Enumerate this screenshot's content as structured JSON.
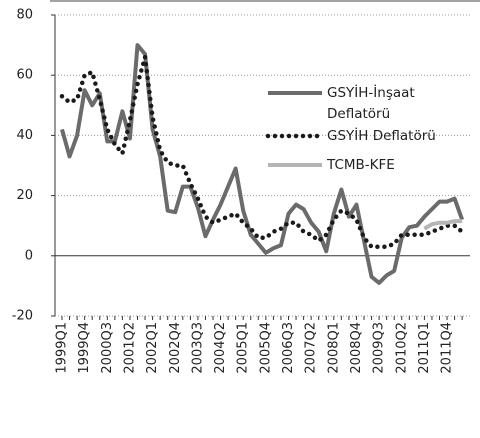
{
  "chart_data": {
    "type": "line",
    "categories": [
      "1999Q1",
      null,
      null,
      "1999Q4",
      null,
      null,
      "2000Q3",
      null,
      null,
      "2001Q2",
      null,
      null,
      "2002Q1",
      null,
      null,
      "2002Q4",
      null,
      null,
      "2003Q3",
      null,
      null,
      "2004Q2",
      null,
      null,
      "2005Q1",
      null,
      null,
      "2005Q4",
      null,
      null,
      "2006Q3",
      null,
      null,
      "2007Q2",
      null,
      null,
      "2008Q1",
      null,
      null,
      "2008Q4",
      null,
      null,
      "2009Q3",
      null,
      null,
      "2010Q2",
      null,
      null,
      "2011Q1",
      null,
      null,
      "2011Q4",
      null,
      null
    ],
    "series": [
      {
        "name": "GSYİH-İnşaat Deflatörü",
        "color": "#6b6b6b",
        "style": "solid",
        "values": [
          42,
          33,
          40,
          55,
          50,
          54,
          38,
          38,
          48,
          39,
          70,
          67,
          42,
          33,
          15,
          14.5,
          23,
          23,
          16,
          6.5,
          12,
          17,
          23,
          29,
          15,
          7,
          4,
          1,
          2.5,
          3.5,
          14,
          17,
          15.5,
          11,
          8,
          1.5,
          14,
          22,
          13,
          17,
          5,
          -7,
          -9,
          -6.5,
          -5,
          6,
          9.5,
          10,
          13,
          15.5,
          18,
          18,
          19,
          12
        ]
      },
      {
        "name": "GSYİH Deflatörü",
        "color": "#1a1a1a",
        "style": "dotted",
        "values": [
          53,
          51,
          52,
          60,
          61,
          52,
          42,
          37,
          34,
          45,
          57,
          66,
          46,
          35,
          31,
          30,
          30,
          24,
          19,
          13,
          11,
          12,
          13,
          14,
          11,
          9,
          6,
          6,
          8,
          9,
          11,
          11,
          8,
          7,
          5,
          7,
          12,
          15,
          14,
          12,
          6,
          3,
          3,
          3,
          4,
          7,
          7,
          7,
          7,
          8,
          9,
          10,
          10,
          8
        ]
      },
      {
        "name": "TCMB-KFE",
        "color": "#b5b5b5",
        "style": "solid",
        "values": [
          null,
          null,
          null,
          null,
          null,
          null,
          null,
          null,
          null,
          null,
          null,
          null,
          null,
          null,
          null,
          null,
          null,
          null,
          null,
          null,
          null,
          null,
          null,
          null,
          null,
          null,
          null,
          null,
          null,
          null,
          null,
          null,
          null,
          null,
          null,
          null,
          null,
          null,
          null,
          null,
          null,
          null,
          null,
          null,
          null,
          null,
          null,
          null,
          9,
          10.5,
          11,
          11,
          11.5,
          11.5
        ]
      }
    ],
    "ylim": [
      -20,
      80
    ],
    "yticks": [
      -20,
      0,
      20,
      40,
      60,
      80
    ],
    "grid": true
  }
}
